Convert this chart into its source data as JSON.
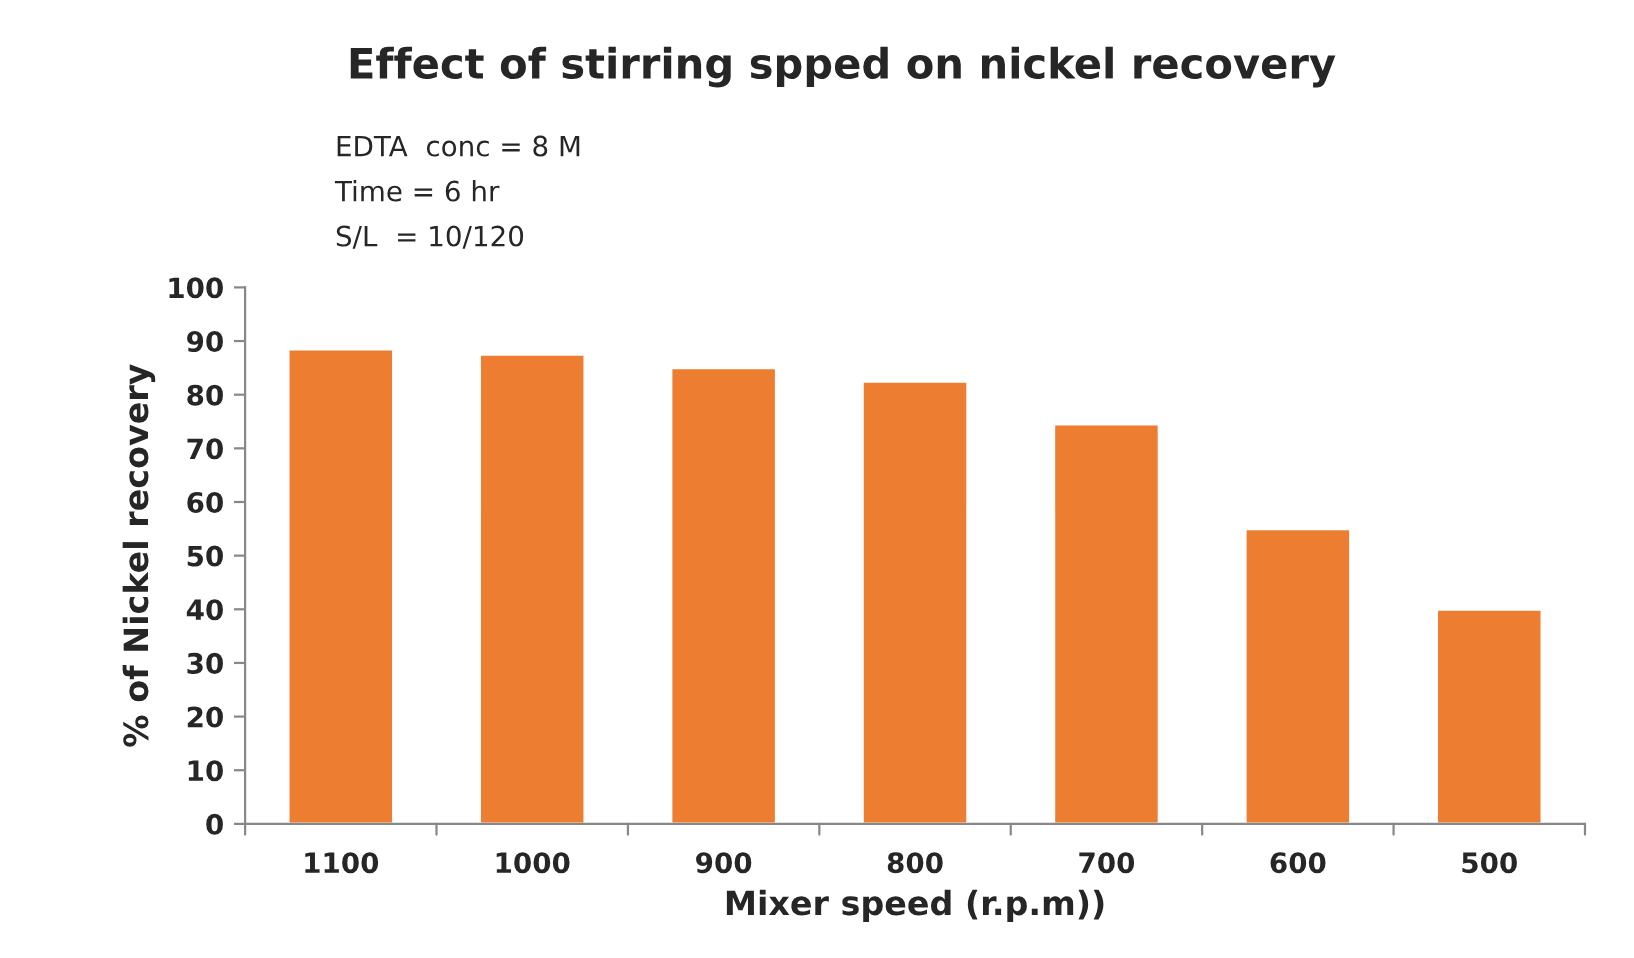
{
  "chart_data": {
    "type": "bar",
    "title": "Effect of stirring spped on nickel recovery",
    "xlabel": "Mixer speed (r.p.m))",
    "ylabel": "% of Nickel recovery",
    "categories": [
      "1100",
      "1000",
      "900",
      "800",
      "700",
      "600",
      "500"
    ],
    "values": [
      88.5,
      87.5,
      85,
      82.5,
      74.5,
      55,
      40
    ],
    "color": "#ed7d31",
    "ylim": [
      0,
      100
    ],
    "yticks": [
      0,
      10,
      20,
      30,
      40,
      50,
      60,
      70,
      80,
      90,
      100
    ],
    "grid": false,
    "annotations": [
      "EDTA  conc = 8 M",
      "Time = 6 hr",
      "S/L  = 10/120"
    ]
  }
}
